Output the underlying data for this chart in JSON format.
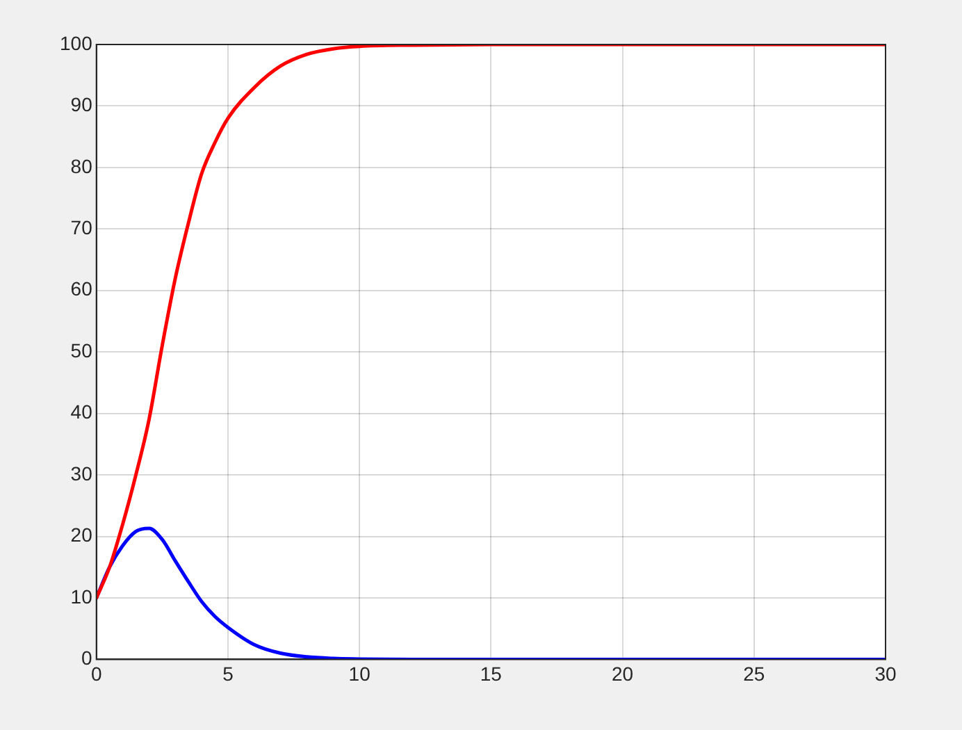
{
  "chart_data": {
    "type": "line",
    "x": [
      0,
      0.5,
      1,
      1.5,
      2,
      2.5,
      3,
      3.5,
      4,
      4.5,
      5,
      6,
      7,
      8,
      9,
      10,
      12,
      15,
      20,
      25,
      30
    ],
    "series": [
      {
        "color": "#ff0000",
        "values": [
          10,
          15,
          22,
          30,
          39,
          51,
          62,
          71,
          79,
          84,
          88,
          93,
          96.5,
          98.4,
          99.3,
          99.7,
          99.9,
          100,
          100,
          100,
          100
        ]
      },
      {
        "color": "#0000ff",
        "values": [
          10,
          15,
          18.5,
          20.8,
          21.3,
          19.5,
          16,
          12.6,
          9.4,
          7,
          5.2,
          2.4,
          1,
          0.4,
          0.15,
          0.05,
          0,
          0,
          0,
          0,
          0
        ]
      }
    ],
    "xlim": [
      0,
      30
    ],
    "xticks": [
      0,
      5,
      10,
      15,
      20,
      25,
      30
    ],
    "ylim": [
      0,
      100
    ],
    "yticks": [
      0,
      10,
      20,
      30,
      40,
      50,
      60,
      70,
      80,
      90,
      100
    ],
    "grid": true,
    "legend": false,
    "marker": "none",
    "line_style": "solid"
  }
}
